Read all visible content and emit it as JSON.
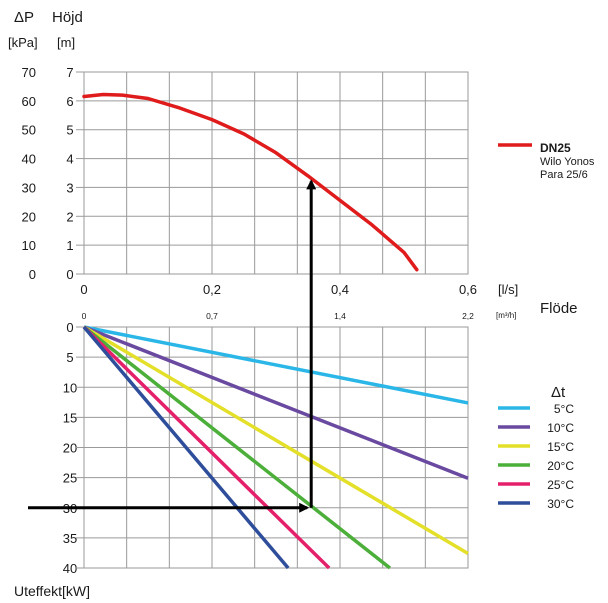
{
  "top_chart": {
    "y_label_pressure": "ΔP",
    "y_unit_pressure": "[kPa]",
    "y_label_height": "Höjd",
    "y_unit_height": "[m]",
    "y_ticks_kpa": [
      "70",
      "60",
      "50",
      "40",
      "30",
      "20",
      "10",
      "0"
    ],
    "y_ticks_m": [
      "7",
      "6",
      "5",
      "4",
      "3",
      "2",
      "1",
      "0"
    ],
    "x_ticks_ls": [
      "0",
      "0,2",
      "0,4",
      "0,6"
    ],
    "x_unit_ls": "[l/s]",
    "x_ticks_m3h": [
      "0",
      "0,7",
      "1,4",
      "2,2"
    ],
    "x_unit_m3h": "[m³/h]",
    "x_label": "Flöde",
    "legend": {
      "name": "DN25",
      "line1": "Wilo Yonos",
      "line2": "Para 25/6",
      "color": "#e01b1b"
    }
  },
  "bottom_chart": {
    "y_ticks": [
      "0",
      "5",
      "10",
      "15",
      "20",
      "25",
      "30",
      "35",
      "40"
    ],
    "y_label": "Uteffekt[kW]",
    "legend_title": "Δt"
  },
  "chart_data": [
    {
      "type": "line",
      "title": "",
      "xlabel": "Flöde [l/s]",
      "ylabel": "Höjd [m]",
      "xlim": [
        0,
        0.6
      ],
      "ylim": [
        0,
        7
      ],
      "series": [
        {
          "name": "DN25",
          "color": "#e01b1b",
          "x": [
            0,
            0.03,
            0.06,
            0.1,
            0.15,
            0.2,
            0.25,
            0.3,
            0.35,
            0.4,
            0.45,
            0.5,
            0.52
          ],
          "y": [
            6.15,
            6.22,
            6.2,
            6.08,
            5.75,
            5.35,
            4.85,
            4.2,
            3.4,
            2.55,
            1.7,
            0.75,
            0.15
          ]
        }
      ],
      "reading_arrow": {
        "x": 0.355,
        "y_from": "0",
        "y_to": 3.35
      }
    },
    {
      "type": "line",
      "title": "",
      "xlabel": "Flöde [l/s]",
      "ylabel": "Uteffekt [kW]",
      "xlim": [
        0,
        0.6
      ],
      "ylim": [
        0,
        40
      ],
      "y_inverted": true,
      "series": [
        {
          "name": "5°C",
          "color": "#2ab7e8",
          "x": [
            0,
            0.6
          ],
          "y": [
            0,
            12.6
          ]
        },
        {
          "name": "10°C",
          "color": "#6a4aa0",
          "x": [
            0,
            0.6
          ],
          "y": [
            0,
            25.1
          ]
        },
        {
          "name": "15°C",
          "color": "#e4e02a",
          "x": [
            0,
            0.6
          ],
          "y": [
            0,
            37.6
          ]
        },
        {
          "name": "20°C",
          "color": "#4caf3a",
          "x": [
            0,
            0.478
          ],
          "y": [
            0,
            40
          ]
        },
        {
          "name": "25°C",
          "color": "#e5206a",
          "x": [
            0,
            0.383
          ],
          "y": [
            0,
            40
          ]
        },
        {
          "name": "30°C",
          "color": "#2e4d9a",
          "x": [
            0,
            0.319
          ],
          "y": [
            0,
            40
          ]
        }
      ],
      "reading_arrow": {
        "x": 0.355,
        "y_value": 30
      }
    }
  ]
}
